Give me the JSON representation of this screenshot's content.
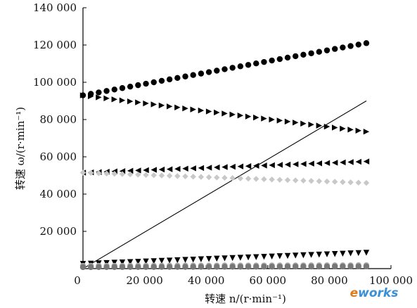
{
  "chart_data": {
    "type": "scatter",
    "xlabel": "转速 n/(r·min⁻¹)",
    "ylabel": "转速 ω/(r·min⁻¹)",
    "xlim": [
      0,
      100000
    ],
    "ylim": [
      0,
      140000
    ],
    "x_ticks": [
      "0",
      "20 000",
      "40 000",
      "60 000",
      "80 000",
      "100 000"
    ],
    "y_ticks": [
      "20 000",
      "40 000",
      "60 000",
      "80 000",
      "100 000",
      "120 000",
      "140 000"
    ],
    "grid": false,
    "legend": "none",
    "series": [
      {
        "marker": "circle",
        "color": "#000000",
        "x_start": 0,
        "x_end": 92000,
        "y_start": 93000,
        "y_end": 121000,
        "count": 37
      },
      {
        "marker": "triangle-right",
        "color": "#000000",
        "x_start": 0,
        "x_end": 92000,
        "y_start": 93000,
        "y_end": 73500,
        "count": 37
      },
      {
        "marker": "triangle-left",
        "color": "#000000",
        "x_start": 0,
        "x_end": 92000,
        "y_start": 51500,
        "y_end": 57500,
        "count": 37
      },
      {
        "marker": "diamond",
        "color": "#c8c8c8",
        "x_start": 0,
        "x_end": 92000,
        "y_start": 51500,
        "y_end": 46000,
        "count": 37
      },
      {
        "marker": "triangle-down",
        "color": "#000000",
        "x_start": 0,
        "x_end": 92000,
        "y_start": 2500,
        "y_end": 8500,
        "count": 37
      },
      {
        "marker": "circle",
        "color": "#aaaaaa",
        "x_start": 0,
        "x_end": 92000,
        "y_start": 1500,
        "y_end": 1800,
        "count": 37
      },
      {
        "marker": "circle",
        "color": "#777777",
        "x_start": 0,
        "x_end": 92000,
        "y_start": 800,
        "y_end": 1200,
        "count": 37
      }
    ],
    "lines": [
      {
        "style": "solid",
        "color": "#000000",
        "x": [
          0,
          92000
        ],
        "y": [
          0,
          90000
        ]
      }
    ]
  },
  "watermark": {
    "prefix": "e",
    "suffix": "works"
  }
}
